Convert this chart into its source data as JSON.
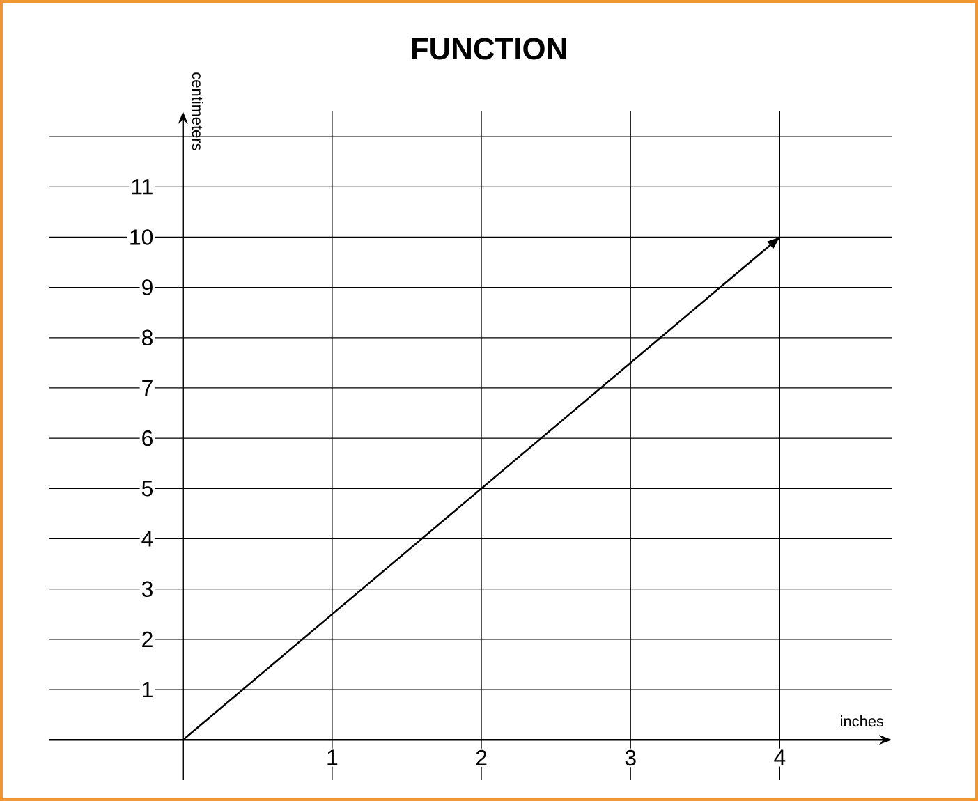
{
  "chart_data": {
    "type": "line",
    "title": "FUNCTION",
    "xlabel": "inches",
    "ylabel": "centimeters",
    "x": [
      0,
      4
    ],
    "values": [
      0,
      10
    ],
    "color": "#000000",
    "marker": "none",
    "line_style": "solid",
    "xlim": [
      -0.9,
      4.75
    ],
    "ylim": [
      -0.8,
      12.5
    ],
    "xticks": [
      1,
      2,
      3,
      4
    ],
    "yticks": [
      1,
      2,
      3,
      4,
      5,
      6,
      7,
      8,
      9,
      10,
      11,
      {
        "value": 12,
        "label": null
      }
    ],
    "grid": true
  }
}
